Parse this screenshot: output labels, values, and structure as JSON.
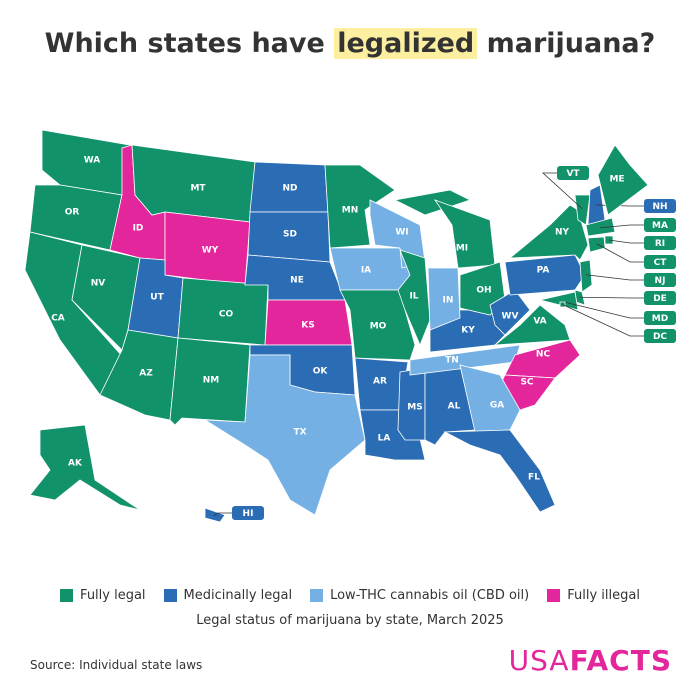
{
  "title": {
    "before": "Which states have",
    "highlight": "legalized",
    "after": "marijuana?"
  },
  "legend": [
    {
      "name": "Fully legal",
      "color": "#12926b"
    },
    {
      "name": "Medicinally legal",
      "color": "#2b6db4"
    },
    {
      "name": "Low-THC cannabis oil (CBD oil)",
      "color": "#74b0e4"
    },
    {
      "name": "Fully illegal",
      "color": "#e3269b"
    }
  ],
  "caption": "Legal status of marijuana by state, March 2025",
  "source": "Source: Individual state laws",
  "logo": {
    "first": "USA",
    "second": "FACTS"
  },
  "states": [
    {
      "abbr": "WA",
      "status": "Fully legal"
    },
    {
      "abbr": "OR",
      "status": "Fully legal"
    },
    {
      "abbr": "CA",
      "status": "Fully legal"
    },
    {
      "abbr": "NV",
      "status": "Fully legal"
    },
    {
      "abbr": "ID",
      "status": "Fully illegal"
    },
    {
      "abbr": "MT",
      "status": "Fully legal"
    },
    {
      "abbr": "WY",
      "status": "Fully illegal"
    },
    {
      "abbr": "UT",
      "status": "Medicinally legal"
    },
    {
      "abbr": "CO",
      "status": "Fully legal"
    },
    {
      "abbr": "AZ",
      "status": "Fully legal"
    },
    {
      "abbr": "NM",
      "status": "Fully legal"
    },
    {
      "abbr": "ND",
      "status": "Medicinally legal"
    },
    {
      "abbr": "SD",
      "status": "Medicinally legal"
    },
    {
      "abbr": "NE",
      "status": "Medicinally legal"
    },
    {
      "abbr": "KS",
      "status": "Fully illegal"
    },
    {
      "abbr": "OK",
      "status": "Medicinally legal"
    },
    {
      "abbr": "TX",
      "status": "Low-THC cannabis oil (CBD oil)"
    },
    {
      "abbr": "MN",
      "status": "Fully legal"
    },
    {
      "abbr": "IA",
      "status": "Low-THC cannabis oil (CBD oil)"
    },
    {
      "abbr": "MO",
      "status": "Fully legal"
    },
    {
      "abbr": "AR",
      "status": "Medicinally legal"
    },
    {
      "abbr": "LA",
      "status": "Medicinally legal"
    },
    {
      "abbr": "WI",
      "status": "Low-THC cannabis oil (CBD oil)"
    },
    {
      "abbr": "IL",
      "status": "Fully legal"
    },
    {
      "abbr": "MS",
      "status": "Medicinally legal"
    },
    {
      "abbr": "AL",
      "status": "Medicinally legal"
    },
    {
      "abbr": "TN",
      "status": "Low-THC cannabis oil (CBD oil)"
    },
    {
      "abbr": "KY",
      "status": "Medicinally legal"
    },
    {
      "abbr": "IN",
      "status": "Low-THC cannabis oil (CBD oil)"
    },
    {
      "abbr": "MI",
      "status": "Fully legal"
    },
    {
      "abbr": "OH",
      "status": "Fully legal"
    },
    {
      "abbr": "WV",
      "status": "Medicinally legal"
    },
    {
      "abbr": "VA",
      "status": "Fully legal"
    },
    {
      "abbr": "NC",
      "status": "Fully illegal"
    },
    {
      "abbr": "SC",
      "status": "Fully illegal"
    },
    {
      "abbr": "GA",
      "status": "Low-THC cannabis oil (CBD oil)"
    },
    {
      "abbr": "FL",
      "status": "Medicinally legal"
    },
    {
      "abbr": "PA",
      "status": "Medicinally legal"
    },
    {
      "abbr": "NY",
      "status": "Fully legal"
    },
    {
      "abbr": "VT",
      "status": "Fully legal"
    },
    {
      "abbr": "NH",
      "status": "Medicinally legal"
    },
    {
      "abbr": "ME",
      "status": "Fully legal"
    },
    {
      "abbr": "MA",
      "status": "Fully legal"
    },
    {
      "abbr": "RI",
      "status": "Fully legal"
    },
    {
      "abbr": "CT",
      "status": "Fully legal"
    },
    {
      "abbr": "NJ",
      "status": "Fully legal"
    },
    {
      "abbr": "DE",
      "status": "Fully legal"
    },
    {
      "abbr": "MD",
      "status": "Fully legal"
    },
    {
      "abbr": "DC",
      "status": "Fully legal"
    },
    {
      "abbr": "AK",
      "status": "Fully legal"
    },
    {
      "abbr": "HI",
      "status": "Medicinally legal"
    }
  ]
}
